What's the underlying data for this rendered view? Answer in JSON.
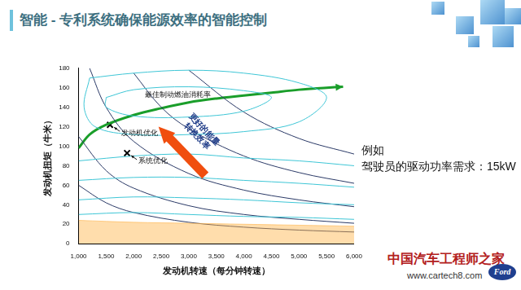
{
  "slide": {
    "title": "智能 - 专利系统确保能源效率的智能控制",
    "side_text": [
      "例如",
      "驾驶员的驱动功率需求：15kW"
    ],
    "watermark": [
      "中国汽车工程师之家",
      "www.cartech8.com"
    ],
    "logo": "Ford"
  },
  "chart_data": {
    "type": "line",
    "x_label": "发动机转速（每分钟转速）",
    "y_label": "发动机扭矩（牛米）",
    "xlim": [
      1000,
      6000
    ],
    "xticks": [
      1000,
      1500,
      2000,
      2500,
      3000,
      3500,
      4000,
      4500,
      5000,
      5500,
      6000
    ],
    "ylim": [
      0,
      180
    ],
    "yticks": [
      0,
      20,
      40,
      60,
      80,
      100,
      120,
      140,
      160,
      180
    ],
    "grid": false,
    "legend": "none",
    "series": [
      {
        "type": "area",
        "color": "#ffb347",
        "values": [
          [
            1000,
            24
          ],
          [
            2000,
            22
          ],
          [
            3000,
            21
          ],
          [
            4000,
            20
          ],
          [
            5000,
            19
          ],
          [
            6000,
            18
          ]
        ]
      },
      {
        "type": "line",
        "color": "#3ec6d6",
        "line_style": "solid",
        "values": [
          [
            1500,
            150
          ],
          [
            2000,
            158
          ],
          [
            3000,
            161
          ],
          [
            4000,
            157
          ],
          [
            4500,
            150
          ],
          [
            4000,
            136
          ],
          [
            3000,
            130
          ],
          [
            2000,
            131
          ],
          [
            1500,
            140
          ],
          [
            1500,
            150
          ]
        ]
      },
      {
        "type": "line",
        "color": "#3ec6d6",
        "line_style": "solid",
        "values": [
          [
            1200,
            170
          ],
          [
            2000,
            175
          ],
          [
            3000,
            178
          ],
          [
            4000,
            175
          ],
          [
            5000,
            165
          ],
          [
            5500,
            150
          ],
          [
            5000,
            125
          ],
          [
            4000,
            115
          ],
          [
            3000,
            112
          ],
          [
            2000,
            112
          ],
          [
            1300,
            120
          ],
          [
            1100,
            140
          ],
          [
            1200,
            170
          ]
        ]
      },
      {
        "type": "line",
        "color": "#3ec6d6",
        "line_style": "solid",
        "values": [
          [
            1000,
            85
          ],
          [
            2000,
            90
          ],
          [
            3000,
            92
          ],
          [
            4000,
            88
          ],
          [
            5000,
            85
          ],
          [
            6000,
            80
          ]
        ]
      },
      {
        "type": "line",
        "color": "#3ec6d6",
        "line_style": "solid",
        "values": [
          [
            1000,
            65
          ],
          [
            2000,
            68
          ],
          [
            3000,
            68
          ],
          [
            4000,
            65
          ],
          [
            5000,
            62
          ],
          [
            6000,
            58
          ]
        ]
      },
      {
        "type": "line",
        "color": "#3ec6d6",
        "line_style": "solid",
        "values": [
          [
            1000,
            45
          ],
          [
            2000,
            48
          ],
          [
            3000,
            47
          ],
          [
            4000,
            45
          ],
          [
            5000,
            42
          ],
          [
            6000,
            40
          ]
        ]
      },
      {
        "type": "line",
        "color": "#3ec6d6",
        "line_style": "solid",
        "values": [
          [
            1000,
            30
          ],
          [
            2000,
            32
          ],
          [
            3000,
            30
          ],
          [
            4000,
            28
          ],
          [
            5000,
            27
          ],
          [
            6000,
            25
          ]
        ]
      },
      {
        "type": "line",
        "color": "#2b3a67",
        "line_style": "solid",
        "values": [
          [
            1000,
            60
          ],
          [
            1500,
            42
          ],
          [
            2000,
            32
          ],
          [
            3000,
            22
          ],
          [
            4000,
            17
          ],
          [
            5000,
            14
          ],
          [
            6000,
            12
          ]
        ]
      },
      {
        "type": "line",
        "color": "#2b3a67",
        "line_style": "solid",
        "values": [
          [
            1000,
            110
          ],
          [
            1500,
            75
          ],
          [
            2000,
            57
          ],
          [
            3000,
            39
          ],
          [
            4000,
            30
          ],
          [
            5000,
            25
          ],
          [
            6000,
            21
          ]
        ]
      },
      {
        "type": "line",
        "color": "#2b3a67",
        "line_style": "solid",
        "values": [
          [
            1200,
            180
          ],
          [
            1500,
            140
          ],
          [
            2000,
            105
          ],
          [
            3000,
            72
          ],
          [
            4000,
            55
          ],
          [
            5000,
            45
          ],
          [
            6000,
            38
          ]
        ]
      },
      {
        "type": "line",
        "color": "#2b3a67",
        "line_style": "solid",
        "values": [
          [
            2000,
            175
          ],
          [
            2500,
            140
          ],
          [
            3000,
            118
          ],
          [
            4000,
            90
          ],
          [
            5000,
            73
          ],
          [
            6000,
            62
          ]
        ]
      },
      {
        "type": "line",
        "color": "#2b3a67",
        "line_style": "solid",
        "values": [
          [
            3000,
            178
          ],
          [
            4000,
            135
          ],
          [
            5000,
            108
          ],
          [
            6000,
            92
          ]
        ]
      },
      {
        "type": "line",
        "color": "#1a9e2a",
        "line_style": "bold",
        "marker": "arrow",
        "values": [
          [
            1000,
            98
          ],
          [
            1200,
            112
          ],
          [
            1500,
            122
          ],
          [
            2000,
            132
          ],
          [
            2500,
            139
          ],
          [
            3000,
            145
          ],
          [
            3500,
            149
          ],
          [
            4000,
            152
          ],
          [
            4500,
            155
          ],
          [
            5000,
            158
          ],
          [
            5500,
            160
          ],
          [
            5800,
            161
          ]
        ]
      }
    ],
    "annotations": [
      {
        "text": "最佳制动燃油消耗率",
        "x": 2800,
        "y": 153
      },
      {
        "text": "发动机优化",
        "x": 1570,
        "y": 122,
        "marker": "cross"
      },
      {
        "text": "系统优化",
        "x": 1880,
        "y": 93,
        "marker": "cross"
      },
      {
        "text": "更好的能量\n转换效率",
        "from": [
          3300,
          70
        ],
        "to": [
          2450,
          120
        ],
        "color": "#f04e0f"
      }
    ]
  }
}
